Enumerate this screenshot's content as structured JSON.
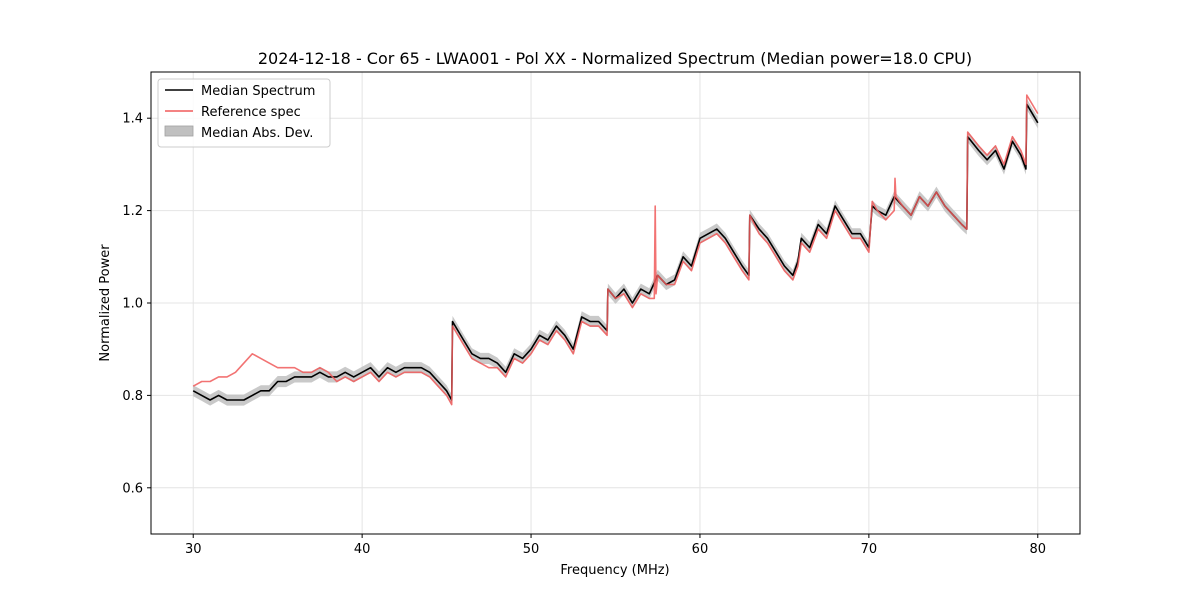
{
  "chart_data": {
    "type": "line",
    "title": "2024-12-18 - Cor 65 - LWA001 - Pol XX - Normalized Spectrum (Median power=18.0 CPU)",
    "xlabel": "Frequency (MHz)",
    "ylabel": "Normalized Power",
    "xlim": [
      27.5,
      82.5
    ],
    "ylim": [
      0.5,
      1.5
    ],
    "x_ticks": [
      30,
      40,
      50,
      60,
      70,
      80
    ],
    "y_ticks": [
      0.6,
      0.8,
      1.0,
      1.2,
      1.4
    ],
    "x_tick_labels": [
      "30",
      "40",
      "50",
      "60",
      "70",
      "80"
    ],
    "y_tick_labels": [
      "0.6",
      "0.8",
      "1.0",
      "1.2",
      "1.4"
    ],
    "grid": true,
    "legend_position": "top-left",
    "legend": [
      "Median Spectrum",
      "Reference spec",
      "Median Abs. Dev."
    ],
    "colors": {
      "median": "#000000",
      "reference": "#f05a5a",
      "overlap": "#8b0000",
      "band": "#c0c0c0",
      "grid": "#e4e4e4"
    },
    "series": [
      {
        "name": "Median Spectrum",
        "x": [
          30.0,
          30.5,
          31.0,
          31.5,
          32.0,
          32.5,
          33.0,
          33.5,
          34.0,
          34.5,
          35.0,
          35.5,
          36.0,
          36.5,
          37.0,
          37.5,
          38.0,
          38.5,
          39.0,
          39.5,
          40.0,
          40.5,
          41.0,
          41.5,
          42.0,
          42.5,
          43.0,
          43.5,
          44.0,
          44.5,
          45.0,
          45.3,
          45.35,
          46.0,
          46.5,
          47.0,
          47.5,
          48.0,
          48.5,
          49.0,
          49.5,
          50.0,
          50.5,
          51.0,
          51.5,
          52.0,
          52.5,
          53.0,
          53.5,
          54.0,
          54.5,
          54.55,
          55.0,
          55.5,
          56.0,
          56.5,
          57.0,
          57.5,
          58.0,
          58.5,
          59.0,
          59.5,
          60.0,
          60.5,
          61.0,
          61.5,
          62.0,
          62.5,
          62.9,
          62.95,
          63.5,
          64.0,
          64.5,
          65.0,
          65.5,
          65.8,
          66.0,
          66.5,
          67.0,
          67.5,
          68.0,
          68.5,
          69.0,
          69.5,
          70.0,
          70.2,
          70.5,
          71.0,
          71.5,
          72.0,
          72.5,
          73.0,
          73.5,
          74.0,
          74.5,
          75.0,
          75.5,
          75.8,
          75.85,
          76.5,
          77.0,
          77.5,
          78.0,
          78.5,
          79.0,
          79.3,
          79.35,
          80.0
        ],
        "values": [
          0.81,
          0.8,
          0.79,
          0.8,
          0.79,
          0.79,
          0.79,
          0.8,
          0.81,
          0.81,
          0.83,
          0.83,
          0.84,
          0.84,
          0.84,
          0.85,
          0.84,
          0.84,
          0.85,
          0.84,
          0.85,
          0.86,
          0.84,
          0.86,
          0.85,
          0.86,
          0.86,
          0.86,
          0.85,
          0.83,
          0.81,
          0.79,
          0.96,
          0.92,
          0.89,
          0.88,
          0.88,
          0.87,
          0.85,
          0.89,
          0.88,
          0.9,
          0.93,
          0.92,
          0.95,
          0.93,
          0.9,
          0.97,
          0.96,
          0.96,
          0.94,
          1.03,
          1.01,
          1.03,
          1.0,
          1.03,
          1.02,
          1.06,
          1.04,
          1.05,
          1.1,
          1.08,
          1.14,
          1.15,
          1.16,
          1.14,
          1.11,
          1.08,
          1.06,
          1.19,
          1.16,
          1.14,
          1.11,
          1.08,
          1.06,
          1.09,
          1.14,
          1.12,
          1.17,
          1.15,
          1.21,
          1.18,
          1.15,
          1.15,
          1.12,
          1.21,
          1.2,
          1.19,
          1.23,
          1.21,
          1.19,
          1.23,
          1.21,
          1.24,
          1.21,
          1.19,
          1.17,
          1.16,
          1.36,
          1.33,
          1.31,
          1.33,
          1.29,
          1.35,
          1.32,
          1.29,
          1.43,
          1.39
        ]
      },
      {
        "name": "Reference spec",
        "x": [
          30.0,
          30.5,
          31.0,
          31.5,
          32.0,
          32.5,
          33.0,
          33.5,
          34.0,
          34.5,
          35.0,
          35.5,
          36.0,
          36.5,
          37.0,
          37.5,
          38.0,
          38.5,
          39.0,
          39.5,
          40.0,
          40.5,
          41.0,
          41.5,
          42.0,
          42.5,
          43.0,
          43.5,
          44.0,
          44.5,
          45.0,
          45.3,
          45.35,
          46.0,
          46.5,
          47.0,
          47.5,
          48.0,
          48.5,
          49.0,
          49.5,
          50.0,
          50.5,
          51.0,
          51.5,
          52.0,
          52.5,
          53.0,
          53.5,
          54.0,
          54.5,
          54.55,
          55.0,
          55.5,
          56.0,
          56.5,
          57.0,
          57.3,
          57.35,
          57.4,
          57.5,
          58.0,
          58.5,
          59.0,
          59.5,
          60.0,
          60.5,
          61.0,
          61.5,
          62.0,
          62.5,
          62.9,
          62.95,
          63.5,
          64.0,
          64.5,
          65.0,
          65.5,
          65.8,
          66.0,
          66.5,
          67.0,
          67.5,
          68.0,
          68.5,
          69.0,
          69.5,
          70.0,
          70.2,
          70.5,
          71.0,
          71.5,
          71.55,
          71.6,
          72.0,
          72.5,
          73.0,
          73.5,
          74.0,
          74.5,
          75.0,
          75.5,
          75.8,
          75.85,
          76.5,
          77.0,
          77.5,
          78.0,
          78.5,
          79.0,
          79.3,
          79.35,
          80.0
        ],
        "values": [
          0.82,
          0.83,
          0.83,
          0.84,
          0.84,
          0.85,
          0.87,
          0.89,
          0.88,
          0.87,
          0.86,
          0.86,
          0.86,
          0.85,
          0.85,
          0.86,
          0.85,
          0.83,
          0.84,
          0.83,
          0.84,
          0.85,
          0.83,
          0.85,
          0.84,
          0.85,
          0.85,
          0.85,
          0.84,
          0.82,
          0.8,
          0.78,
          0.95,
          0.91,
          0.88,
          0.87,
          0.86,
          0.86,
          0.84,
          0.88,
          0.87,
          0.89,
          0.92,
          0.91,
          0.94,
          0.92,
          0.89,
          0.96,
          0.95,
          0.95,
          0.93,
          1.03,
          1.01,
          1.02,
          0.99,
          1.02,
          1.01,
          1.01,
          1.21,
          1.02,
          1.06,
          1.04,
          1.04,
          1.09,
          1.07,
          1.13,
          1.14,
          1.15,
          1.13,
          1.1,
          1.07,
          1.05,
          1.19,
          1.15,
          1.13,
          1.1,
          1.07,
          1.05,
          1.08,
          1.13,
          1.11,
          1.16,
          1.14,
          1.2,
          1.17,
          1.14,
          1.14,
          1.11,
          1.22,
          1.2,
          1.18,
          1.2,
          1.27,
          1.23,
          1.21,
          1.19,
          1.23,
          1.21,
          1.24,
          1.21,
          1.19,
          1.17,
          1.16,
          1.37,
          1.34,
          1.32,
          1.34,
          1.3,
          1.36,
          1.33,
          1.3,
          1.45,
          1.41
        ]
      }
    ],
    "band": {
      "name": "Median Abs. Dev.",
      "width": 0.012
    }
  }
}
